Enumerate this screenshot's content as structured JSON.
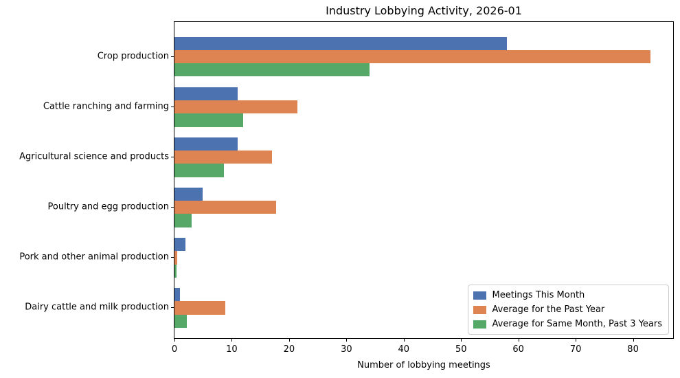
{
  "chart_data": {
    "type": "bar",
    "orientation": "horizontal",
    "title": "Industry Lobbying Activity, 2026-01",
    "xlabel": "Number of lobbying meetings",
    "ylabel": "",
    "xlim": [
      0,
      87
    ],
    "x_ticks": [
      0,
      10,
      20,
      30,
      40,
      50,
      60,
      70,
      80
    ],
    "grid": false,
    "legend_position": "lower right",
    "categories": [
      "Crop production",
      "Cattle ranching and farming",
      "Agricultural science and products",
      "Poultry and egg production",
      "Pork and other animal production",
      "Dairy cattle and milk production"
    ],
    "series": [
      {
        "name": "Meetings This Month",
        "color": "#4c72b0",
        "values": [
          58,
          11,
          11,
          4.9,
          1.9,
          0.9
        ]
      },
      {
        "name": "Average for the Past Year",
        "color": "#dd8452",
        "values": [
          83,
          21.5,
          17,
          17.7,
          0.5,
          8.9
        ]
      },
      {
        "name": "Average for Same Month, Past 3 Years",
        "color": "#55a868",
        "values": [
          34,
          12,
          8.6,
          3,
          0.4,
          2.2
        ]
      }
    ]
  }
}
